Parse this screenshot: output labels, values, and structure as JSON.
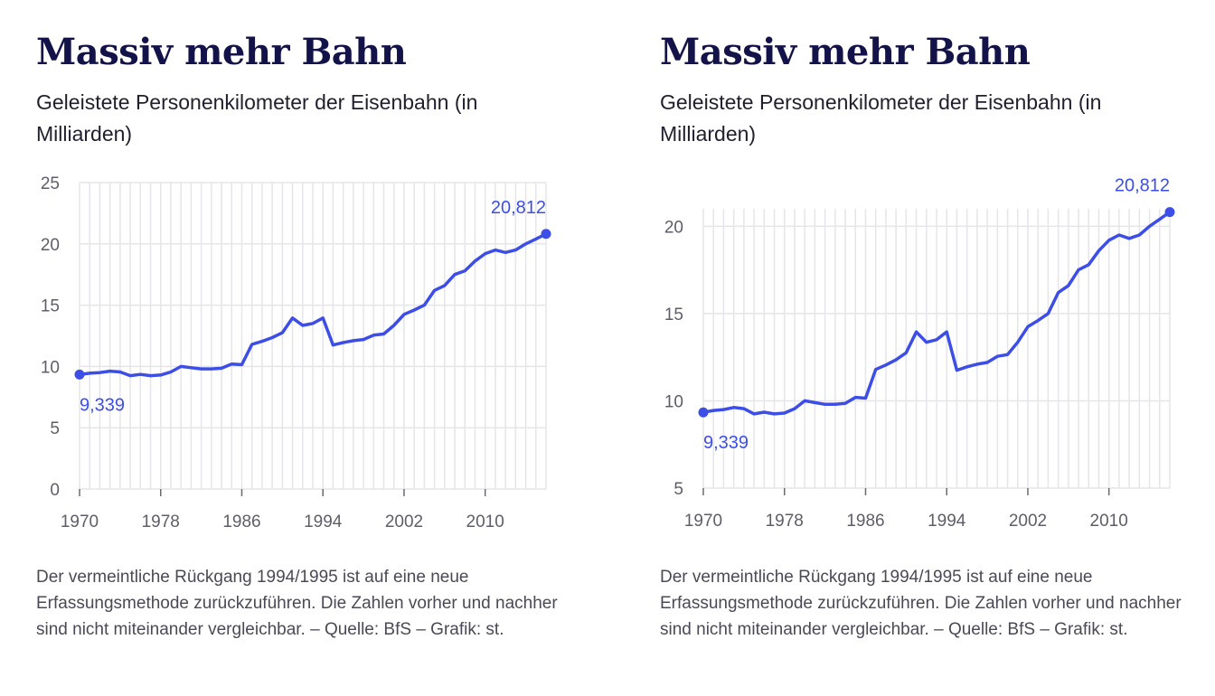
{
  "colors": {
    "line": "#3c4ee6",
    "grid": "#e5e5ea",
    "title": "#13134a"
  },
  "note": "Der vermeintliche Rückgang 1994/1995 ist auf eine neue Erfassungsmethode zurückzuführen. Die Zahlen vorher und nachher sind nicht miteinander vergleichbar. – Quelle:  BfS – Grafik: st.",
  "chart_data": [
    {
      "type": "line",
      "title": "Massiv mehr Bahn",
      "subtitle": "Geleistete Personenkilometer der Eisenbahn (in Milliarden)",
      "xlabel": "",
      "ylabel": "",
      "xlim": [
        1970,
        2016
      ],
      "ylim": [
        0,
        25
      ],
      "yticks": [
        0,
        5,
        10,
        15,
        20,
        25
      ],
      "xticks": [
        1970,
        1978,
        1986,
        1994,
        2002,
        2010
      ],
      "grid": true,
      "annotations": [
        {
          "year": 1970,
          "label": "9,339",
          "position": "below"
        },
        {
          "year": 2016,
          "label": "20,812",
          "position": "above"
        }
      ],
      "series": [
        {
          "x": [
            1970,
            1971,
            1972,
            1973,
            1974,
            1975,
            1976,
            1977,
            1978,
            1979,
            1980,
            1981,
            1982,
            1983,
            1984,
            1985,
            1986,
            1987,
            1988,
            1989,
            1990,
            1991,
            1992,
            1993,
            1994,
            1995,
            1996,
            1997,
            1998,
            1999,
            2000,
            2001,
            2002,
            2003,
            2004,
            2005,
            2006,
            2007,
            2008,
            2009,
            2010,
            2011,
            2012,
            2013,
            2014,
            2015,
            2016
          ],
          "values": [
            9.339,
            9.45,
            9.5,
            9.62,
            9.55,
            9.25,
            9.35,
            9.25,
            9.3,
            9.55,
            10.0,
            9.9,
            9.8,
            9.8,
            9.85,
            10.2,
            10.15,
            11.8,
            12.05,
            12.35,
            12.75,
            13.95,
            13.35,
            13.5,
            13.95,
            11.75,
            11.95,
            12.1,
            12.2,
            12.55,
            12.65,
            13.35,
            14.25,
            14.6,
            15.0,
            16.2,
            16.6,
            17.5,
            17.8,
            18.6,
            19.2,
            19.5,
            19.3,
            19.5,
            20.0,
            20.4,
            20.812
          ]
        }
      ]
    },
    {
      "type": "line",
      "title": "Massiv mehr Bahn",
      "subtitle": "Geleistete Personenkilometer der Eisenbahn (in Milliarden)",
      "xlabel": "",
      "ylabel": "",
      "xlim": [
        1970,
        2016
      ],
      "ylim": [
        5,
        21
      ],
      "yticks": [
        5,
        10,
        15,
        20
      ],
      "xticks": [
        1970,
        1978,
        1986,
        1994,
        2002,
        2010
      ],
      "grid": true,
      "annotations": [
        {
          "year": 1970,
          "label": "9,339",
          "position": "below"
        },
        {
          "year": 2016,
          "label": "20,812",
          "position": "above"
        }
      ],
      "series": [
        {
          "x": [
            1970,
            1971,
            1972,
            1973,
            1974,
            1975,
            1976,
            1977,
            1978,
            1979,
            1980,
            1981,
            1982,
            1983,
            1984,
            1985,
            1986,
            1987,
            1988,
            1989,
            1990,
            1991,
            1992,
            1993,
            1994,
            1995,
            1996,
            1997,
            1998,
            1999,
            2000,
            2001,
            2002,
            2003,
            2004,
            2005,
            2006,
            2007,
            2008,
            2009,
            2010,
            2011,
            2012,
            2013,
            2014,
            2015,
            2016
          ],
          "values": [
            9.339,
            9.45,
            9.5,
            9.62,
            9.55,
            9.25,
            9.35,
            9.25,
            9.3,
            9.55,
            10.0,
            9.9,
            9.8,
            9.8,
            9.85,
            10.2,
            10.15,
            11.8,
            12.05,
            12.35,
            12.75,
            13.95,
            13.35,
            13.5,
            13.95,
            11.75,
            11.95,
            12.1,
            12.2,
            12.55,
            12.65,
            13.35,
            14.25,
            14.6,
            15.0,
            16.2,
            16.6,
            17.5,
            17.8,
            18.6,
            19.2,
            19.5,
            19.3,
            19.5,
            20.0,
            20.4,
            20.812
          ]
        }
      ]
    }
  ]
}
